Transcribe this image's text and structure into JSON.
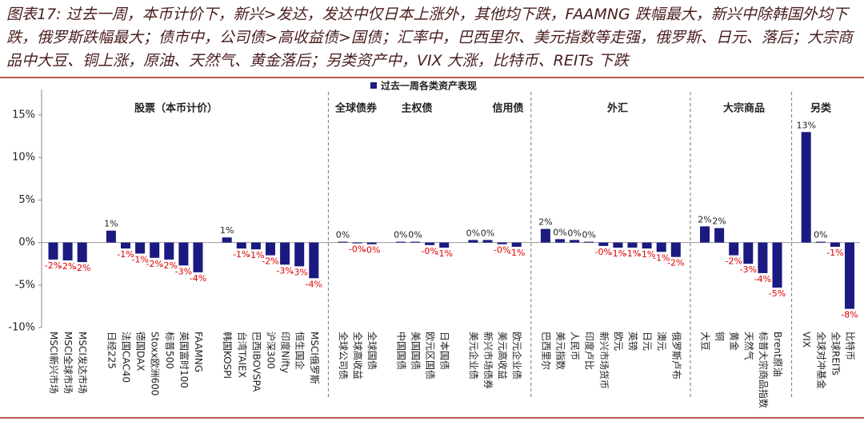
{
  "chart_data": {
    "type": "bar",
    "title": "图表17: 过去一周，本币计价下，新兴>发达，发达中仅日本上涨外，其他均下跌，FAAMNG 跌幅最大，新兴中除韩国外均下跌，俄罗斯跌幅最大；债市中，公司债>高收益债>国债；汇率中，巴西里尔、美元指数等走强，俄罗斯、日元、落后；大宗商品中大豆、铜上涨，原油、天然气、黄金落后；另类资产中，VIX 大涨，比特币、REITs 下跌",
    "group_labels": [
      "股票（本币计价）",
      "全球债券",
      "主权债",
      "信用债",
      "外汇",
      "大宗商品",
      "另类"
    ],
    "categories": [
      "MSCI新兴市场",
      "MSCI全球市场",
      "MSCI发达市场",
      null,
      "日经225",
      "法国CAC40",
      "德国DAX",
      "Stoxx欧洲600",
      "标普500",
      "英国富时100",
      "FAAMNG",
      null,
      "韩国KOSPI",
      "台湾TAIEX",
      "巴西IBOVSPA",
      "沪深300",
      "印度Nifty",
      "恒生国企",
      "MSCI俄罗斯",
      null,
      "全球公司债",
      "全球高收益",
      "全球国债",
      null,
      "中国国债",
      "美国国债",
      "欧元区国债",
      "日本国债",
      null,
      "美元企业债",
      "新兴市场债券",
      "美元高收益",
      "欧元企业债",
      null,
      "巴西里尔",
      "美元指数",
      "人民币",
      "印度卢比",
      "新兴市场货币",
      "欧元",
      "英镑",
      "日元",
      "澳元",
      "俄罗斯卢布",
      null,
      "大豆",
      "铜",
      "黄金",
      "天然气",
      "标普大宗商品指数",
      "Brent原油",
      null,
      "VIX",
      "全球对冲基金",
      "全球REITs",
      "比特币"
    ],
    "series": [
      {
        "name": "过去一周各类资产表现",
        "color": "#1a1a80",
        "values": [
          -2.0,
          -2.1,
          -2.3,
          null,
          1.4,
          -0.7,
          -1.3,
          -1.8,
          -2.0,
          -2.7,
          -3.5,
          null,
          0.6,
          -0.7,
          -0.8,
          -1.5,
          -2.6,
          -2.8,
          -4.2,
          null,
          0.1,
          -0.1,
          -0.2,
          null,
          0.1,
          0.1,
          -0.3,
          -0.6,
          null,
          0.3,
          0.3,
          -0.2,
          -0.5,
          null,
          1.6,
          0.4,
          0.3,
          0.1,
          -0.4,
          -0.6,
          -0.6,
          -0.7,
          -1.1,
          -1.7,
          null,
          1.9,
          1.7,
          -1.5,
          -2.5,
          -3.6,
          -5.3,
          null,
          13.0,
          0.1,
          -0.5,
          -7.8
        ],
        "value_labels": [
          "-2%",
          "-2%",
          "-2%",
          null,
          "1%",
          "-1%",
          "-1%",
          "-2%",
          "-2%",
          "-3%",
          "-4%",
          null,
          "1%",
          "-1%",
          "-1%",
          "-2%",
          "-3%",
          "-3%",
          "-4%",
          null,
          "0%",
          "-0%",
          "-0%",
          null,
          "0%",
          "0%",
          "-0%",
          "-1%",
          null,
          "0%",
          "0%",
          "-0%",
          "-1%",
          null,
          "2%",
          "0%",
          "0%",
          "0%",
          "-0%",
          "-1%",
          "-1%",
          "-1%",
          "-1%",
          "-2%",
          null,
          "2%",
          "2%",
          "-2%",
          "-3%",
          "-4%",
          "-5%",
          null,
          "13%",
          "0%",
          "-1%",
          "-8%"
        ]
      }
    ],
    "ylim": [
      -10,
      15
    ],
    "yticks": [
      {
        "value": -10,
        "label": "-10%"
      },
      {
        "value": -5,
        "label": "-5%"
      },
      {
        "value": 0,
        "label": "0%"
      },
      {
        "value": 5,
        "label": "5%"
      },
      {
        "value": 10,
        "label": "10%"
      },
      {
        "value": 15,
        "label": "15%"
      }
    ],
    "negative_label_color": "#e00000",
    "legend": "top"
  }
}
